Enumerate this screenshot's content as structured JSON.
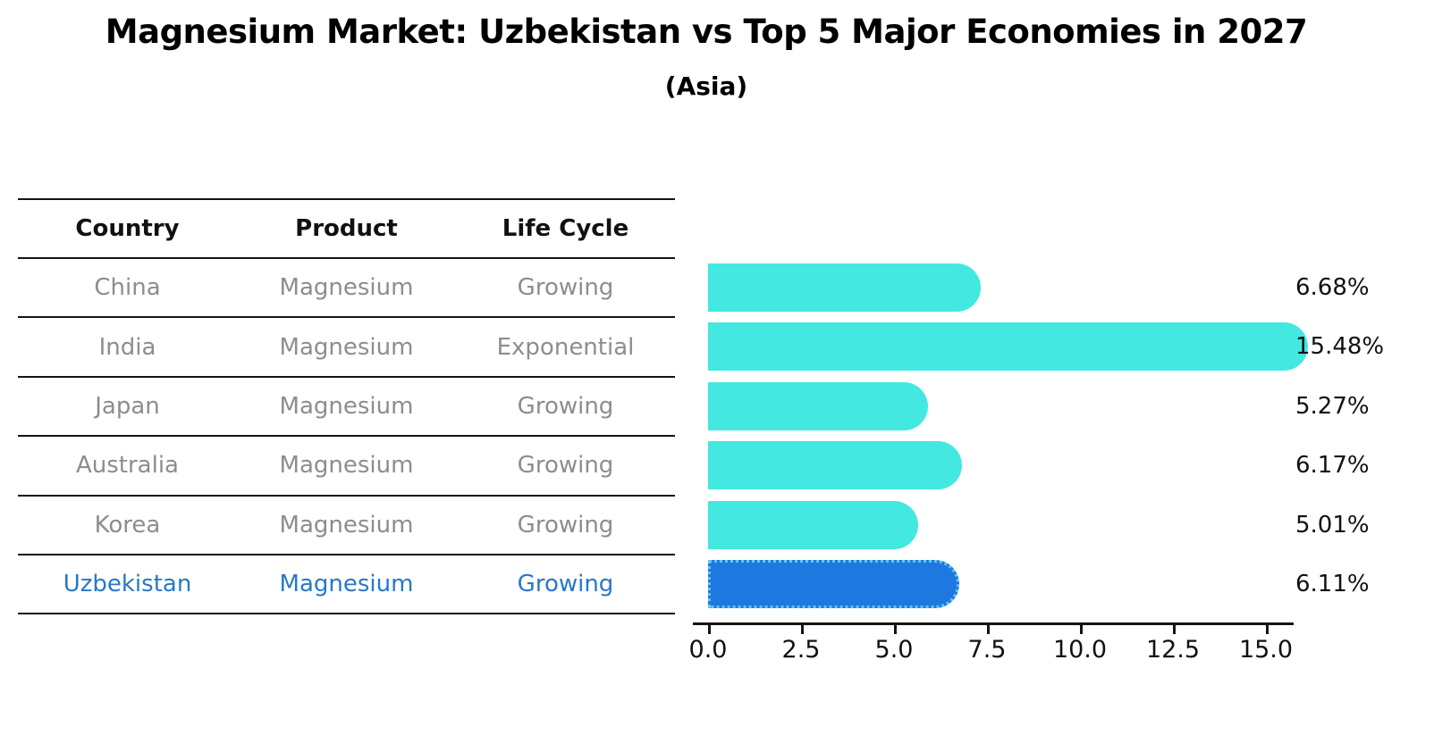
{
  "title": "Magnesium Market: Uzbekistan vs Top 5 Major Economies in 2027",
  "subtitle": "(Asia)",
  "table": {
    "headers": [
      "Country",
      "Product",
      "Life Cycle"
    ]
  },
  "chart_data": {
    "type": "bar",
    "orientation": "horizontal",
    "title": "Magnesium Market: Uzbekistan vs Top 5 Major Economies in 2027",
    "subtitle": "(Asia)",
    "xlabel": "",
    "ylabel": "",
    "xlim": [
      0,
      16.4
    ],
    "xtick_labels": [
      "0.0",
      "2.5",
      "5.0",
      "7.5",
      "10.0",
      "12.5",
      "15.0"
    ],
    "grid": false,
    "legend": "none",
    "rows": [
      {
        "country": "China",
        "product": "Magnesium",
        "life_cycle": "Growing",
        "value": 6.68,
        "label": "6.68%",
        "highlight": false
      },
      {
        "country": "India",
        "product": "Magnesium",
        "life_cycle": "Exponential",
        "value": 15.48,
        "label": "15.48%",
        "highlight": false
      },
      {
        "country": "Japan",
        "product": "Magnesium",
        "life_cycle": "Growing",
        "value": 5.27,
        "label": "5.27%",
        "highlight": false
      },
      {
        "country": "Australia",
        "product": "Magnesium",
        "life_cycle": "Growing",
        "value": 6.17,
        "label": "6.17%",
        "highlight": false
      },
      {
        "country": "Korea",
        "product": "Magnesium",
        "life_cycle": "Growing",
        "value": 5.01,
        "label": "5.01%",
        "highlight": false
      },
      {
        "country": "Uzbekistan",
        "product": "Magnesium",
        "life_cycle": "Growing",
        "value": 6.11,
        "label": "6.11%",
        "highlight": true
      }
    ],
    "colors": {
      "bar": "#43e8e0",
      "highlight_bar": "#1e78e0",
      "highlight_border": "#5bc8f5",
      "highlight_text": "#2878c8",
      "row_text": "#8d8d8d",
      "value_text": "#111111",
      "axis": "#141414"
    }
  }
}
